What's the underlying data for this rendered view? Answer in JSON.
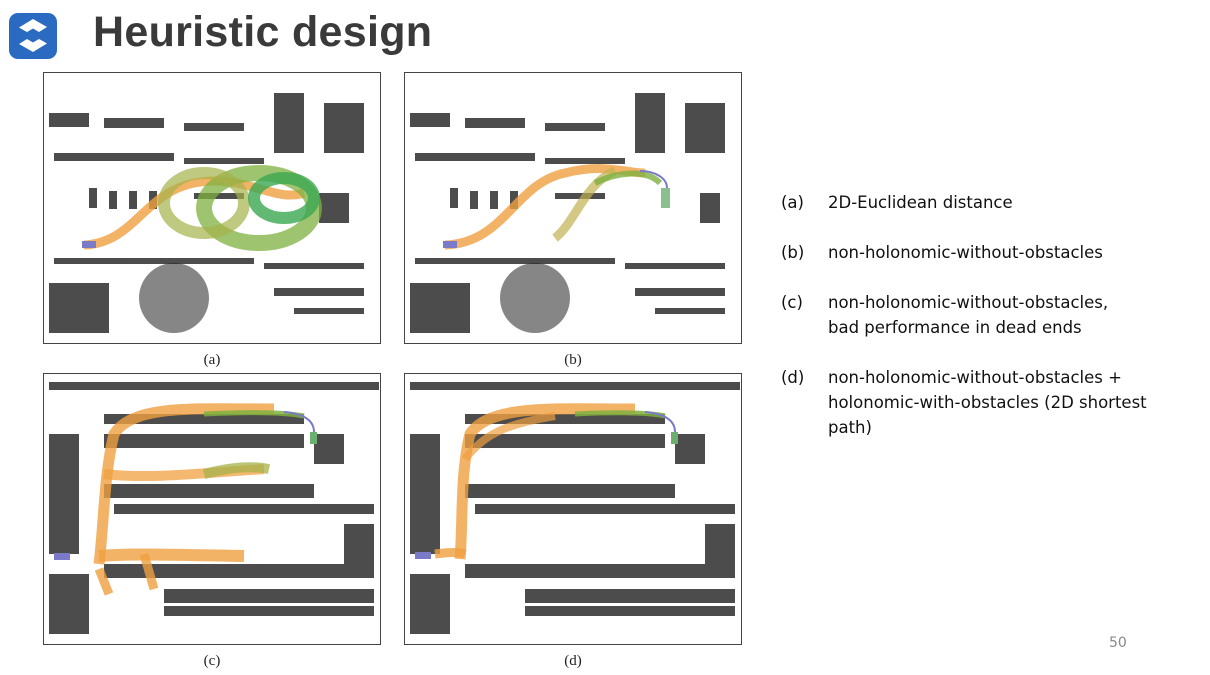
{
  "title": "Heuristic design",
  "logo_icon": "s-logo-icon",
  "panels": [
    {
      "caption": "(a)"
    },
    {
      "caption": "(b)"
    },
    {
      "caption": "(c)"
    },
    {
      "caption": "(d)"
    }
  ],
  "legend": [
    {
      "label": "(a)",
      "text": "2D-Euclidean distance"
    },
    {
      "label": "(b)",
      "text": "non-holonomic-without-obstacles"
    },
    {
      "label": "(c)",
      "text": "non-holonomic-without-obstacles, bad performance in dead ends"
    },
    {
      "label": "(d)",
      "text": "non-holonomic-without-obstacles  + holonomic-with-obstacles (2D shortest path)"
    }
  ],
  "page_number": "50",
  "colors": {
    "brand": "#2a6bc1",
    "path_orange": "#f0a040",
    "path_green": "#3aa850",
    "path_olive": "#a5b24a"
  }
}
